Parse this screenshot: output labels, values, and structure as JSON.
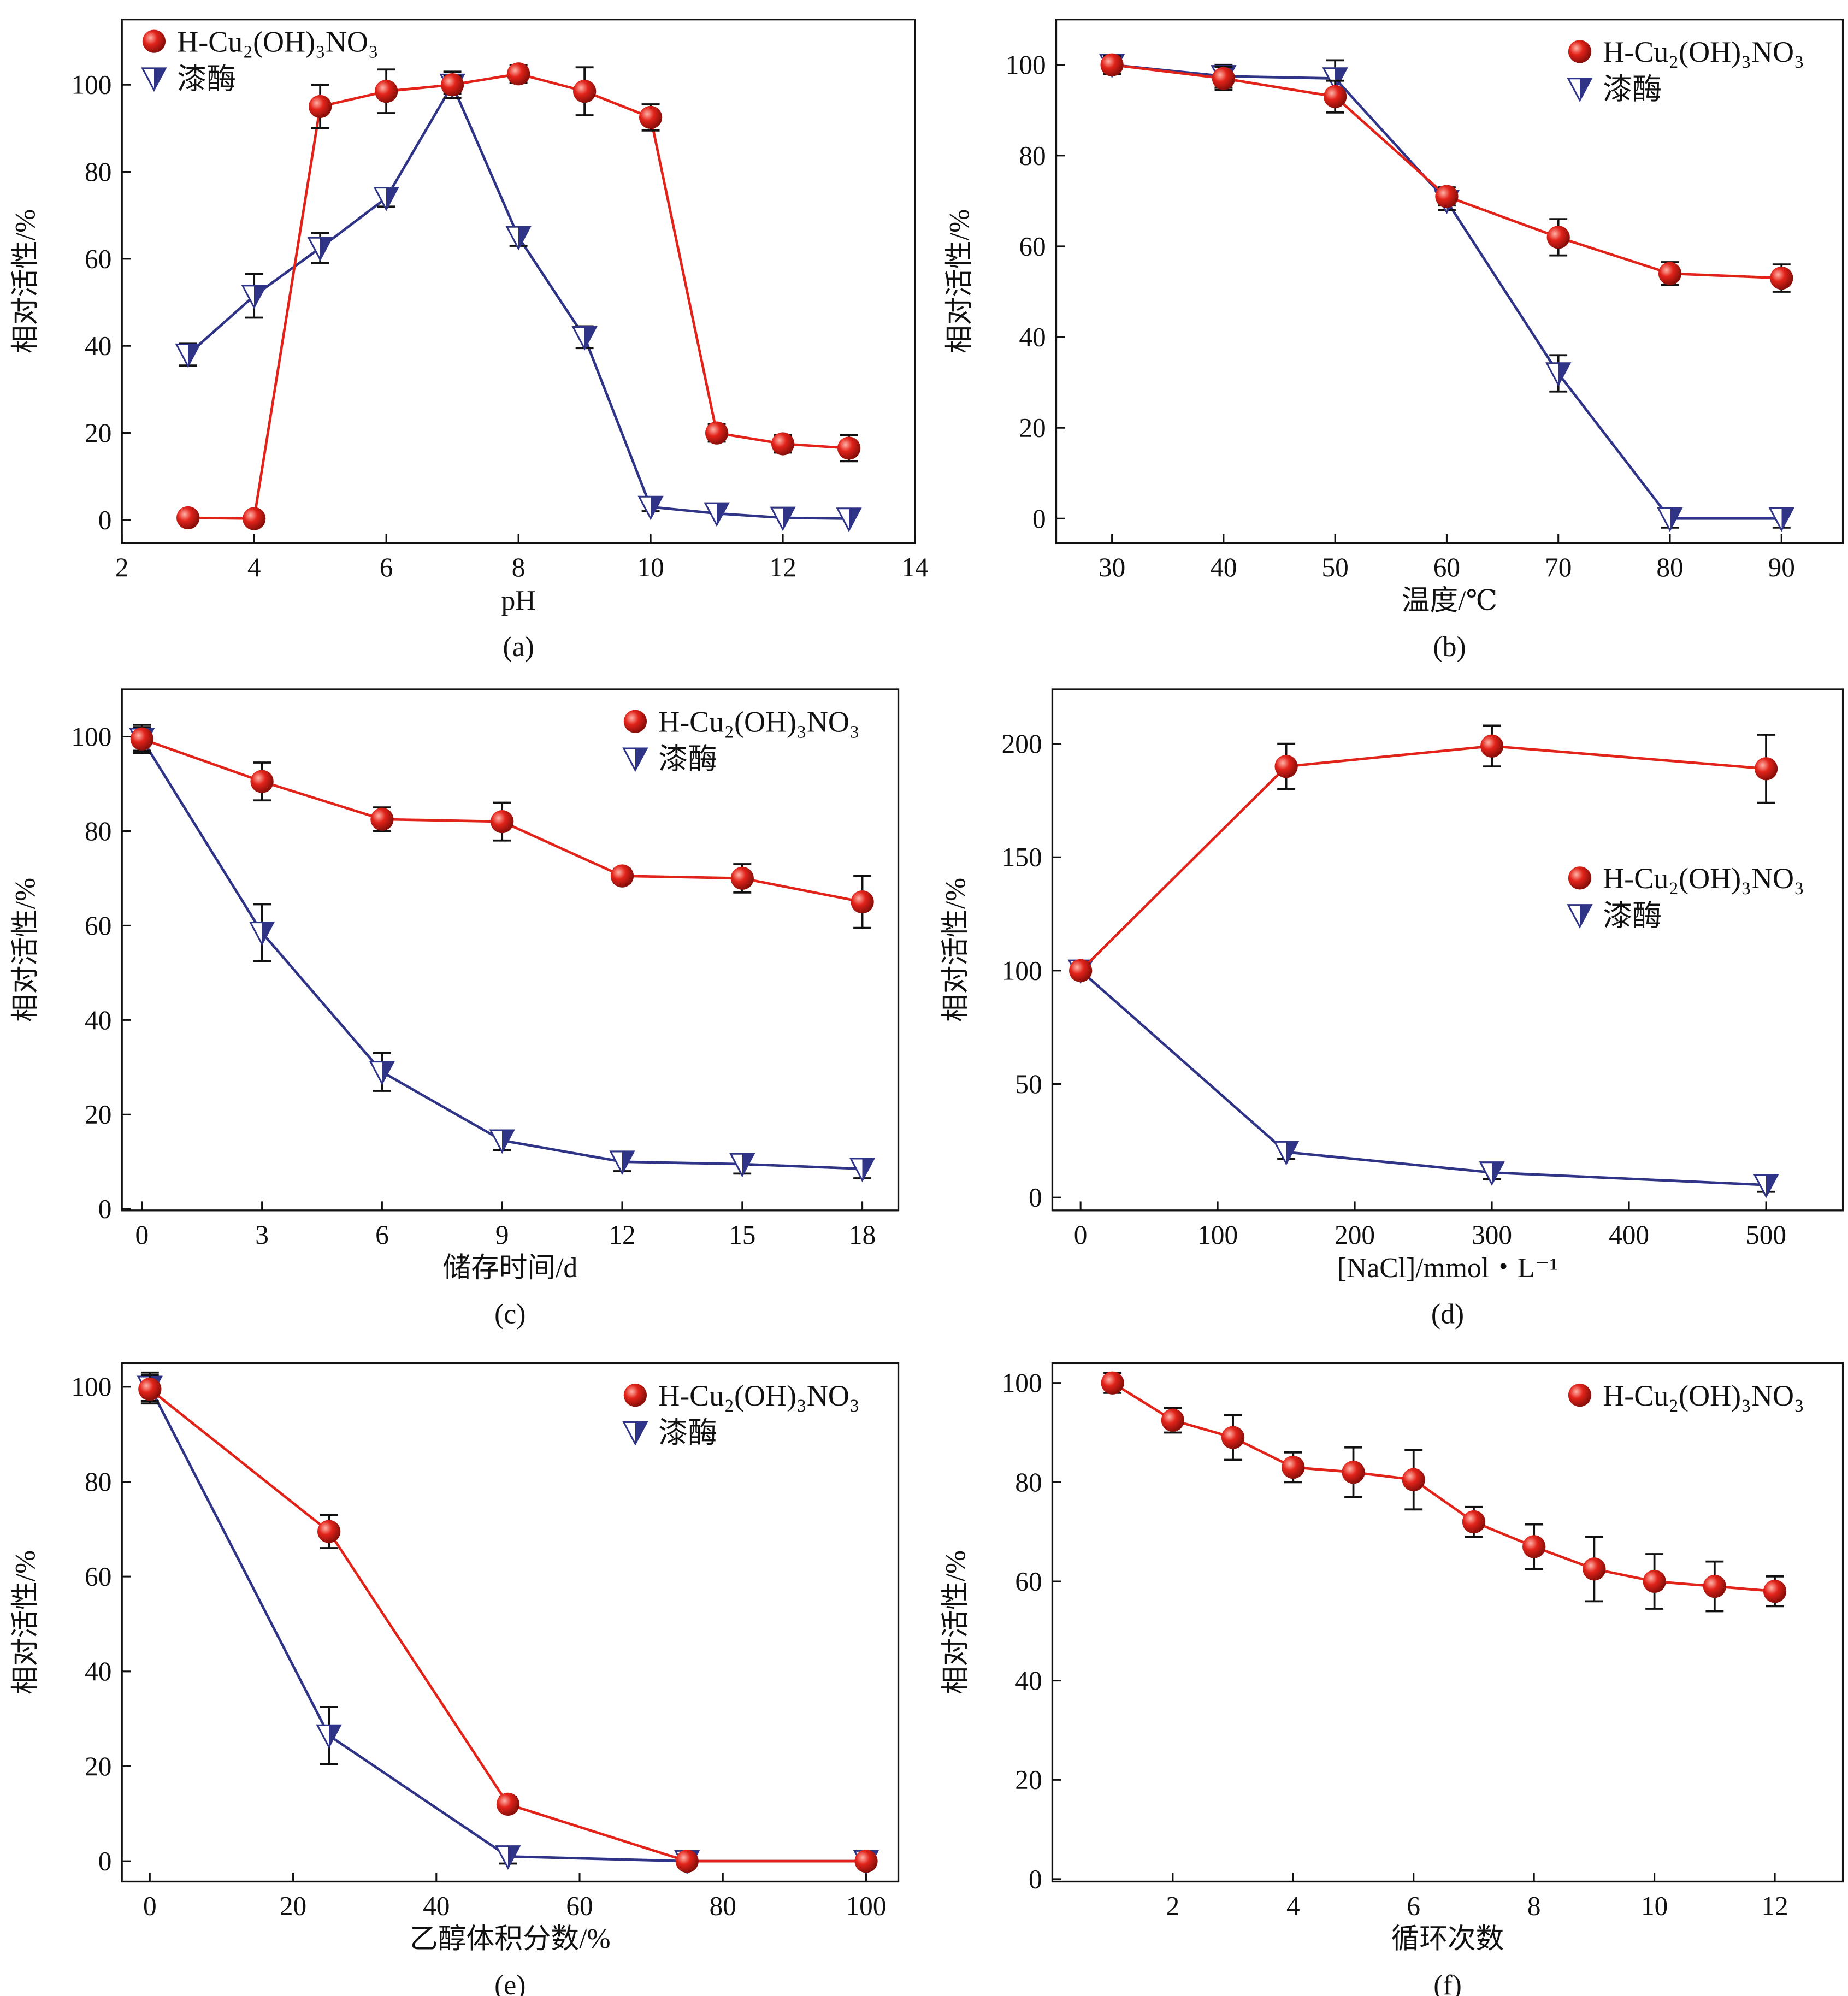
{
  "colors": {
    "cu": "#e2231a",
    "laccase": "#2f3487",
    "axis": "#111111"
  },
  "legend_labels": {
    "cu": "H-Cu₂(OH)₃NO₃",
    "laccase": "漆酶"
  },
  "chart_data": [
    {
      "id": "a",
      "type": "line",
      "caption": "(a)",
      "xlabel": "pH",
      "ylabel": "相对活性/%",
      "xlim": [
        2,
        14
      ],
      "ylim": [
        -5.3,
        115
      ],
      "xticks": [
        2,
        4,
        6,
        8,
        10,
        12,
        14
      ],
      "yticks": [
        0,
        20,
        40,
        60,
        80,
        100
      ],
      "legend": "top-left",
      "series": [
        {
          "name": "H-Cu₂(OH)₃NO₃",
          "key": "cu",
          "x": [
            3,
            4,
            5,
            6,
            7,
            8,
            9,
            10,
            11,
            12,
            13
          ],
          "y": [
            0.5,
            0.3,
            95,
            98.5,
            100,
            102.5,
            98.5,
            92.5,
            20,
            17.5,
            16.5
          ],
          "err": [
            0,
            0,
            5,
            5,
            2,
            2,
            5.5,
            3,
            2,
            2,
            3
          ]
        },
        {
          "name": "漆酶",
          "key": "laccase",
          "x": [
            3,
            4,
            5,
            6,
            7,
            8,
            9,
            10,
            11,
            12,
            13
          ],
          "y": [
            38,
            51.5,
            62.5,
            74,
            100,
            65,
            42,
            3,
            1.5,
            0.5,
            0.3
          ],
          "err": [
            2.5,
            5,
            3.5,
            2,
            3,
            2,
            2.5,
            1,
            0,
            0,
            0
          ]
        }
      ]
    },
    {
      "id": "b",
      "type": "line",
      "caption": "(b)",
      "xlabel": "温度/℃",
      "ylabel": "相对活性/%",
      "xlim": [
        25,
        95.5
      ],
      "ylim": [
        -5.4,
        110
      ],
      "xticks": [
        30,
        40,
        50,
        60,
        70,
        80,
        90
      ],
      "yticks": [
        0,
        20,
        40,
        60,
        80,
        100
      ],
      "legend": "top-right",
      "series": [
        {
          "name": "H-Cu₂(OH)₃NO₃",
          "key": "cu",
          "x": [
            30,
            40,
            50,
            60,
            70,
            80,
            90
          ],
          "y": [
            100,
            97,
            93,
            71,
            62,
            54,
            53
          ],
          "err": [
            2,
            2.5,
            3.5,
            2,
            4,
            2.5,
            3
          ]
        },
        {
          "name": "漆酶",
          "key": "laccase",
          "x": [
            30,
            40,
            50,
            60,
            70,
            80,
            90
          ],
          "y": [
            100,
            97.5,
            97,
            70,
            32,
            0,
            0
          ],
          "err": [
            2,
            2.5,
            4,
            2,
            4,
            2,
            2
          ]
        }
      ]
    },
    {
      "id": "c",
      "type": "line",
      "caption": "(c)",
      "xlabel": "储存时间/d",
      "ylabel": "相对活性/%",
      "xlim": [
        -0.5,
        18.9
      ],
      "ylim": [
        -0.3,
        110
      ],
      "xticks": [
        0,
        3,
        6,
        9,
        12,
        15,
        18
      ],
      "yticks": [
        0,
        20,
        40,
        60,
        80,
        100
      ],
      "legend": "top-right",
      "series": [
        {
          "name": "H-Cu₂(OH)₃NO₃",
          "key": "cu",
          "x": [
            0,
            3,
            6,
            9,
            12,
            15,
            18
          ],
          "y": [
            99.5,
            90.5,
            82.5,
            82,
            70.5,
            70,
            65
          ],
          "err": [
            3,
            4,
            2.5,
            4,
            1.5,
            3,
            5.5
          ]
        },
        {
          "name": "漆酶",
          "key": "laccase",
          "x": [
            0,
            3,
            6,
            9,
            12,
            15,
            18
          ],
          "y": [
            99.5,
            58.5,
            29,
            14.5,
            10,
            9.5,
            8.5
          ],
          "err": [
            2.5,
            6,
            4,
            2,
            2,
            2,
            2
          ]
        }
      ]
    },
    {
      "id": "d",
      "type": "line",
      "caption": "(d)",
      "xlabel": "[NaCl]/mmol・L⁻¹",
      "ylabel": "相对活性/%",
      "xlim": [
        -20.6,
        556
      ],
      "ylim": [
        -5.7,
        224
      ],
      "xticks": [
        0,
        100,
        200,
        300,
        400,
        500
      ],
      "yticks": [
        0,
        50,
        100,
        150,
        200
      ],
      "legend": "right",
      "series": [
        {
          "name": "H-Cu₂(OH)₃NO₃",
          "key": "cu",
          "x": [
            0,
            150,
            300,
            500
          ],
          "y": [
            100,
            190,
            199,
            189
          ],
          "err": [
            3,
            10,
            9,
            15
          ]
        },
        {
          "name": "漆酶",
          "key": "laccase",
          "x": [
            0,
            150,
            300,
            500
          ],
          "y": [
            100,
            20,
            11,
            5.5
          ],
          "err": [
            3,
            3,
            3,
            3
          ]
        }
      ]
    },
    {
      "id": "e",
      "type": "line",
      "caption": "(e)",
      "xlabel": "乙醇体积分数/%",
      "ylabel": "相对活性/%",
      "xlim": [
        -3.9,
        104.5
      ],
      "ylim": [
        -4.3,
        105
      ],
      "xticks": [
        0,
        20,
        40,
        60,
        80,
        100
      ],
      "yticks": [
        0,
        20,
        40,
        60,
        80,
        100
      ],
      "legend": "top-right",
      "series": [
        {
          "name": "H-Cu₂(OH)₃NO₃",
          "key": "cu",
          "x": [
            0,
            25,
            50,
            75,
            100
          ],
          "y": [
            99.5,
            69.5,
            12,
            0,
            0
          ],
          "err": [
            3,
            3.5,
            1.5,
            0,
            0
          ]
        },
        {
          "name": "漆酶",
          "key": "laccase",
          "x": [
            0,
            25,
            50,
            75,
            100
          ],
          "y": [
            100,
            26.5,
            1,
            0,
            0
          ],
          "err": [
            3,
            6,
            1.5,
            0,
            0
          ]
        }
      ]
    },
    {
      "id": "f",
      "type": "line",
      "caption": "(f)",
      "xlabel": "循环次数",
      "ylabel": "相对活性/%",
      "xlim": [
        0,
        13.13
      ],
      "ylim": [
        -0.5,
        104
      ],
      "xticks": [
        2,
        4,
        6,
        8,
        10,
        12
      ],
      "yticks": [
        0,
        20,
        40,
        60,
        80,
        100
      ],
      "legend": "top-right",
      "series": [
        {
          "name": "H-Cu₂(OH)₃NO₃",
          "key": "cu",
          "x": [
            1,
            2,
            3,
            4,
            5,
            6,
            7,
            8,
            9,
            10,
            11,
            12
          ],
          "y": [
            100,
            92.5,
            89,
            83,
            82,
            80.5,
            72,
            67,
            62.5,
            60,
            59,
            58
          ],
          "err": [
            2,
            2.5,
            4.5,
            3,
            5,
            6,
            3,
            4.5,
            6.5,
            5.5,
            5,
            3
          ]
        }
      ]
    }
  ]
}
